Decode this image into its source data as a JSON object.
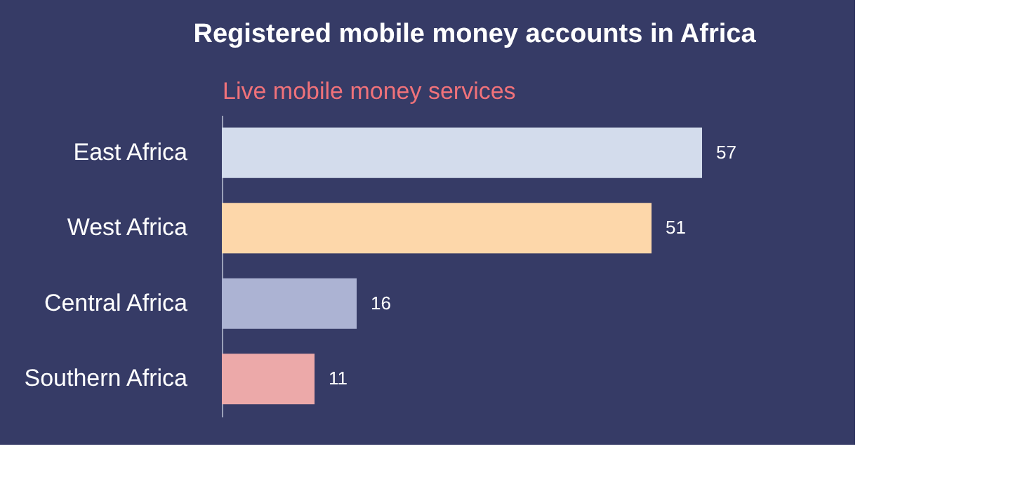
{
  "chart_data": {
    "type": "bar",
    "orientation": "horizontal",
    "title": "Registered mobile money accounts in Africa",
    "subtitle": "Live mobile money services",
    "categories": [
      "East Africa",
      "West Africa",
      "Central Africa",
      "Southern Africa"
    ],
    "values": [
      57,
      51,
      16,
      11
    ],
    "colors": [
      "#d3dcec",
      "#fdd7aa",
      "#acb3d3",
      "#eca9a9"
    ],
    "data_labels": true,
    "tick_labels": "y",
    "grid": false
  }
}
